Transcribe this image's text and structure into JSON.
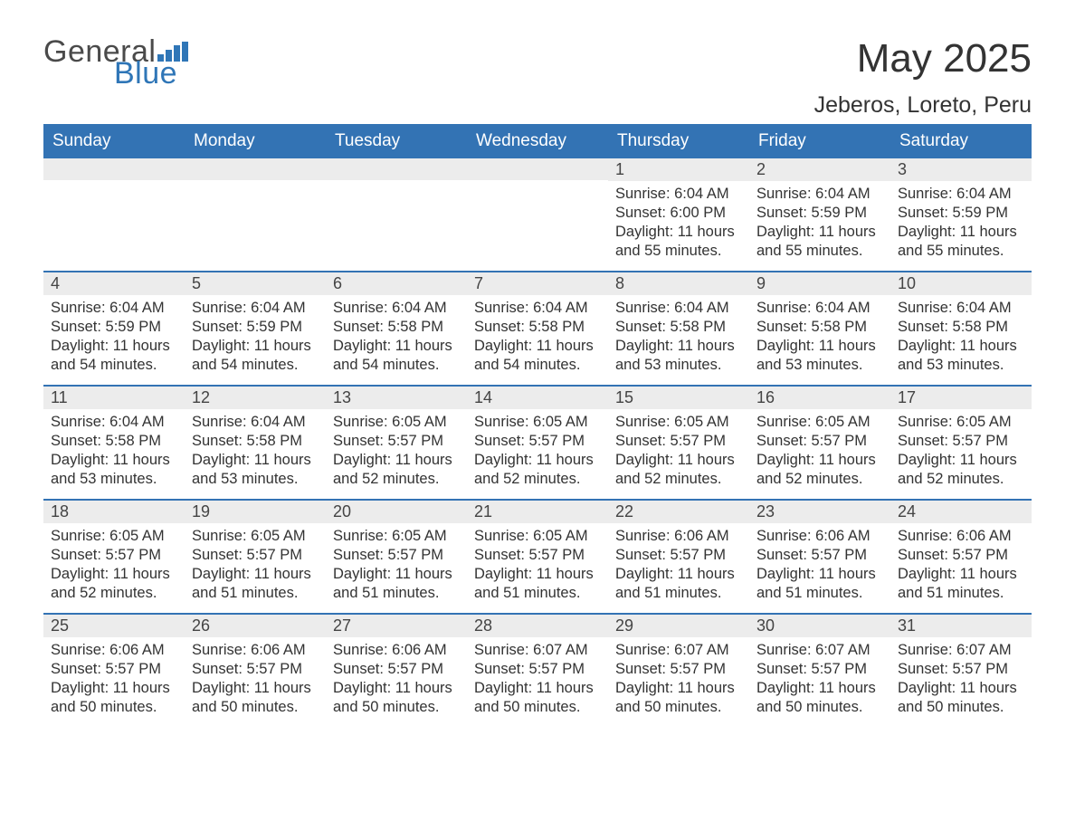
{
  "brand": {
    "word1": "General",
    "word2": "Blue",
    "chart_fill": "#2f76b7"
  },
  "title": "May 2025",
  "location": "Jeberos, Loreto, Peru",
  "colors": {
    "header_bg": "#3373b4",
    "header_text": "#ffffff",
    "daynum_bg": "#ececec",
    "row_border": "#3373b4",
    "body_text": "#333333",
    "background": "#ffffff"
  },
  "grid": {
    "columns": 7,
    "rows": 5
  },
  "day_headers": [
    "Sunday",
    "Monday",
    "Tuesday",
    "Wednesday",
    "Thursday",
    "Friday",
    "Saturday"
  ],
  "days": [
    {
      "n": "",
      "sunrise": "",
      "sunset": "",
      "daylight": ""
    },
    {
      "n": "",
      "sunrise": "",
      "sunset": "",
      "daylight": ""
    },
    {
      "n": "",
      "sunrise": "",
      "sunset": "",
      "daylight": ""
    },
    {
      "n": "",
      "sunrise": "",
      "sunset": "",
      "daylight": ""
    },
    {
      "n": "1",
      "sunrise": "Sunrise: 6:04 AM",
      "sunset": "Sunset: 6:00 PM",
      "daylight": "Daylight: 11 hours and 55 minutes."
    },
    {
      "n": "2",
      "sunrise": "Sunrise: 6:04 AM",
      "sunset": "Sunset: 5:59 PM",
      "daylight": "Daylight: 11 hours and 55 minutes."
    },
    {
      "n": "3",
      "sunrise": "Sunrise: 6:04 AM",
      "sunset": "Sunset: 5:59 PM",
      "daylight": "Daylight: 11 hours and 55 minutes."
    },
    {
      "n": "4",
      "sunrise": "Sunrise: 6:04 AM",
      "sunset": "Sunset: 5:59 PM",
      "daylight": "Daylight: 11 hours and 54 minutes."
    },
    {
      "n": "5",
      "sunrise": "Sunrise: 6:04 AM",
      "sunset": "Sunset: 5:59 PM",
      "daylight": "Daylight: 11 hours and 54 minutes."
    },
    {
      "n": "6",
      "sunrise": "Sunrise: 6:04 AM",
      "sunset": "Sunset: 5:58 PM",
      "daylight": "Daylight: 11 hours and 54 minutes."
    },
    {
      "n": "7",
      "sunrise": "Sunrise: 6:04 AM",
      "sunset": "Sunset: 5:58 PM",
      "daylight": "Daylight: 11 hours and 54 minutes."
    },
    {
      "n": "8",
      "sunrise": "Sunrise: 6:04 AM",
      "sunset": "Sunset: 5:58 PM",
      "daylight": "Daylight: 11 hours and 53 minutes."
    },
    {
      "n": "9",
      "sunrise": "Sunrise: 6:04 AM",
      "sunset": "Sunset: 5:58 PM",
      "daylight": "Daylight: 11 hours and 53 minutes."
    },
    {
      "n": "10",
      "sunrise": "Sunrise: 6:04 AM",
      "sunset": "Sunset: 5:58 PM",
      "daylight": "Daylight: 11 hours and 53 minutes."
    },
    {
      "n": "11",
      "sunrise": "Sunrise: 6:04 AM",
      "sunset": "Sunset: 5:58 PM",
      "daylight": "Daylight: 11 hours and 53 minutes."
    },
    {
      "n": "12",
      "sunrise": "Sunrise: 6:04 AM",
      "sunset": "Sunset: 5:58 PM",
      "daylight": "Daylight: 11 hours and 53 minutes."
    },
    {
      "n": "13",
      "sunrise": "Sunrise: 6:05 AM",
      "sunset": "Sunset: 5:57 PM",
      "daylight": "Daylight: 11 hours and 52 minutes."
    },
    {
      "n": "14",
      "sunrise": "Sunrise: 6:05 AM",
      "sunset": "Sunset: 5:57 PM",
      "daylight": "Daylight: 11 hours and 52 minutes."
    },
    {
      "n": "15",
      "sunrise": "Sunrise: 6:05 AM",
      "sunset": "Sunset: 5:57 PM",
      "daylight": "Daylight: 11 hours and 52 minutes."
    },
    {
      "n": "16",
      "sunrise": "Sunrise: 6:05 AM",
      "sunset": "Sunset: 5:57 PM",
      "daylight": "Daylight: 11 hours and 52 minutes."
    },
    {
      "n": "17",
      "sunrise": "Sunrise: 6:05 AM",
      "sunset": "Sunset: 5:57 PM",
      "daylight": "Daylight: 11 hours and 52 minutes."
    },
    {
      "n": "18",
      "sunrise": "Sunrise: 6:05 AM",
      "sunset": "Sunset: 5:57 PM",
      "daylight": "Daylight: 11 hours and 52 minutes."
    },
    {
      "n": "19",
      "sunrise": "Sunrise: 6:05 AM",
      "sunset": "Sunset: 5:57 PM",
      "daylight": "Daylight: 11 hours and 51 minutes."
    },
    {
      "n": "20",
      "sunrise": "Sunrise: 6:05 AM",
      "sunset": "Sunset: 5:57 PM",
      "daylight": "Daylight: 11 hours and 51 minutes."
    },
    {
      "n": "21",
      "sunrise": "Sunrise: 6:05 AM",
      "sunset": "Sunset: 5:57 PM",
      "daylight": "Daylight: 11 hours and 51 minutes."
    },
    {
      "n": "22",
      "sunrise": "Sunrise: 6:06 AM",
      "sunset": "Sunset: 5:57 PM",
      "daylight": "Daylight: 11 hours and 51 minutes."
    },
    {
      "n": "23",
      "sunrise": "Sunrise: 6:06 AM",
      "sunset": "Sunset: 5:57 PM",
      "daylight": "Daylight: 11 hours and 51 minutes."
    },
    {
      "n": "24",
      "sunrise": "Sunrise: 6:06 AM",
      "sunset": "Sunset: 5:57 PM",
      "daylight": "Daylight: 11 hours and 51 minutes."
    },
    {
      "n": "25",
      "sunrise": "Sunrise: 6:06 AM",
      "sunset": "Sunset: 5:57 PM",
      "daylight": "Daylight: 11 hours and 50 minutes."
    },
    {
      "n": "26",
      "sunrise": "Sunrise: 6:06 AM",
      "sunset": "Sunset: 5:57 PM",
      "daylight": "Daylight: 11 hours and 50 minutes."
    },
    {
      "n": "27",
      "sunrise": "Sunrise: 6:06 AM",
      "sunset": "Sunset: 5:57 PM",
      "daylight": "Daylight: 11 hours and 50 minutes."
    },
    {
      "n": "28",
      "sunrise": "Sunrise: 6:07 AM",
      "sunset": "Sunset: 5:57 PM",
      "daylight": "Daylight: 11 hours and 50 minutes."
    },
    {
      "n": "29",
      "sunrise": "Sunrise: 6:07 AM",
      "sunset": "Sunset: 5:57 PM",
      "daylight": "Daylight: 11 hours and 50 minutes."
    },
    {
      "n": "30",
      "sunrise": "Sunrise: 6:07 AM",
      "sunset": "Sunset: 5:57 PM",
      "daylight": "Daylight: 11 hours and 50 minutes."
    },
    {
      "n": "31",
      "sunrise": "Sunrise: 6:07 AM",
      "sunset": "Sunset: 5:57 PM",
      "daylight": "Daylight: 11 hours and 50 minutes."
    }
  ]
}
